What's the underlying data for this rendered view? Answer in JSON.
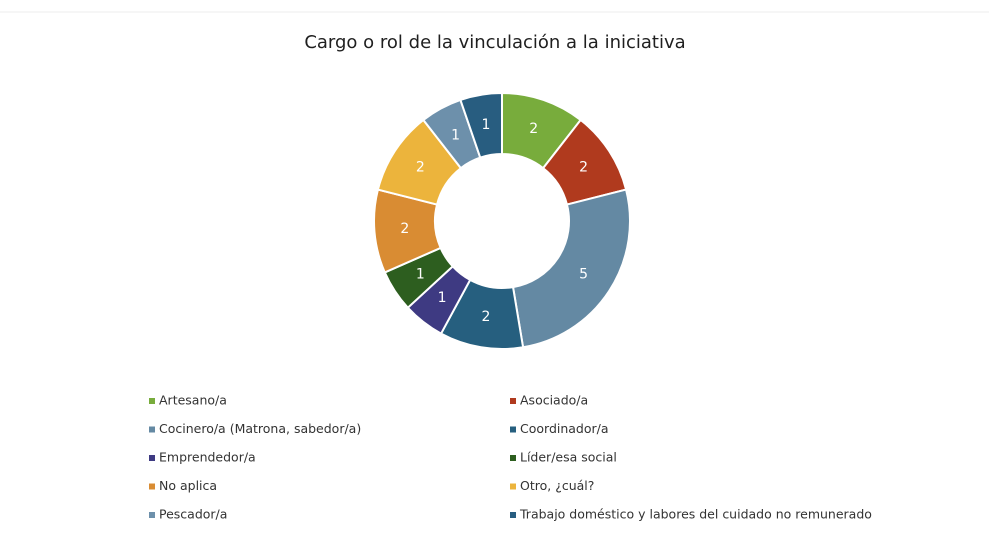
{
  "chart_data": {
    "type": "pie",
    "donut": true,
    "title": "Cargo o rol de la vinculación a la iniciativa",
    "categories": [
      "Artesano/a",
      "Asociado/a",
      "Cocinero/a (Matrona, sabedor/a)",
      "Coordinador/a",
      "Emprendedor/a",
      "Líder/esa social",
      "No aplica",
      "Otro, ¿cuál?",
      "Pescador/a",
      "Trabajo doméstico y labores del cuidado no remunerado"
    ],
    "values": [
      2,
      2,
      5,
      2,
      1,
      1,
      2,
      2,
      1,
      1
    ],
    "colors": [
      "#78ac3c",
      "#b03a1e",
      "#6489a3",
      "#265f7f",
      "#3e3a82",
      "#2d5e1f",
      "#d98c33",
      "#ecb43c",
      "#6d90ab",
      "#285d80"
    ],
    "legend": "bottom"
  }
}
